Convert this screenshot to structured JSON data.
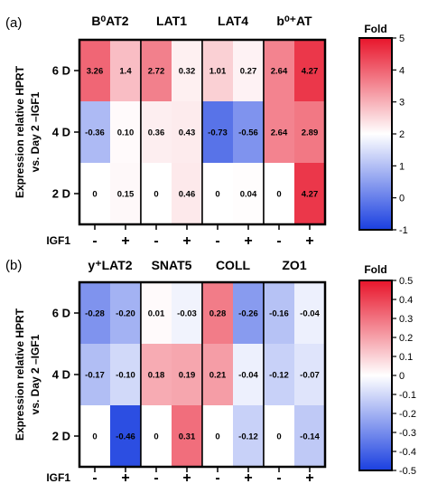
{
  "chart_data": [
    {
      "type": "heatmap",
      "panel_label": "(a)",
      "ylabel_lines": [
        "Expression relative HPRT",
        "vs. Day 2 –IGF1"
      ],
      "row_labels": [
        "6 D",
        "4 D",
        "2 D"
      ],
      "genes": [
        {
          "name": "B⁰AT2",
          "values": [
            [
              3.26,
              1.4
            ],
            [
              -0.36,
              0.1
            ],
            [
              0,
              0.15
            ]
          ],
          "text": [
            [
              "3.26",
              "1.4"
            ],
            [
              "-0.36",
              "0.10"
            ],
            [
              "0",
              "0.15"
            ]
          ]
        },
        {
          "name": "LAT1",
          "values": [
            [
              2.72,
              0.32
            ],
            [
              0.36,
              0.43
            ],
            [
              0,
              0.46
            ]
          ],
          "text": [
            [
              "2.72",
              "0.32"
            ],
            [
              "0.36",
              "0.43"
            ],
            [
              "0",
              "0.46"
            ]
          ]
        },
        {
          "name": "LAT4",
          "values": [
            [
              1.01,
              0.27
            ],
            [
              -0.73,
              -0.56
            ],
            [
              0,
              0.04
            ]
          ],
          "text": [
            [
              "1.01",
              "0.27"
            ],
            [
              "-0.73",
              "-0.56"
            ],
            [
              "0",
              "0.04"
            ]
          ]
        },
        {
          "name": "b⁰⁺AT",
          "values": [
            [
              2.64,
              4.27
            ],
            [
              2.64,
              2.89
            ],
            [
              0,
              4.27
            ]
          ],
          "text": [
            [
              "2.64",
              "4.27"
            ],
            [
              "2.64",
              "2.89"
            ],
            [
              "0",
              "4.27"
            ]
          ]
        }
      ],
      "x_factor_label": "IGF1",
      "x_levels": [
        "-",
        "+"
      ],
      "colorbar": {
        "title": "Fold",
        "min": -1,
        "max": 5,
        "ticks": [
          "-1",
          "0",
          "1",
          "2",
          "3",
          "4",
          "5"
        ],
        "colors": {
          "low": "#1a3fe0",
          "mid": "#ffffff",
          "high": "#e8152b"
        }
      }
    },
    {
      "type": "heatmap",
      "panel_label": "(b)",
      "ylabel_lines": [
        "Expression relative HPRT",
        "vs. Day 2 –IGF1"
      ],
      "row_labels": [
        "6 D",
        "4 D",
        "2 D"
      ],
      "genes": [
        {
          "name": "y⁺LAT2",
          "values": [
            [
              -0.28,
              -0.2
            ],
            [
              -0.17,
              -0.1
            ],
            [
              0,
              -0.46
            ]
          ],
          "text": [
            [
              "-0.28",
              "-0.20"
            ],
            [
              "-0.17",
              "-0.10"
            ],
            [
              "0",
              "-0.46"
            ]
          ]
        },
        {
          "name": "SNAT5",
          "values": [
            [
              0.01,
              -0.03
            ],
            [
              0.18,
              0.19
            ],
            [
              0,
              0.31
            ]
          ],
          "text": [
            [
              "0.01",
              "-0.03"
            ],
            [
              "0.18",
              "0.19"
            ],
            [
              "0",
              "0.31"
            ]
          ]
        },
        {
          "name": "COLL",
          "values": [
            [
              0.28,
              -0.26
            ],
            [
              0.21,
              -0.04
            ],
            [
              0,
              -0.12
            ]
          ],
          "text": [
            [
              "0.28",
              "-0.26"
            ],
            [
              "0.21",
              "-0.04"
            ],
            [
              "0",
              "-0.12"
            ]
          ]
        },
        {
          "name": "ZO1",
          "values": [
            [
              -0.16,
              -0.04
            ],
            [
              -0.12,
              -0.07
            ],
            [
              0,
              -0.14
            ]
          ],
          "text": [
            [
              "-0.16",
              "-0.04"
            ],
            [
              "-0.12",
              "-0.07"
            ],
            [
              "0",
              "-0.14"
            ]
          ]
        }
      ],
      "x_factor_label": "IGF1",
      "x_levels": [
        "-",
        "+"
      ],
      "colorbar": {
        "title": "Fold",
        "min": -0.5,
        "max": 0.5,
        "ticks": [
          "-0.5",
          "-0.4",
          "-0.3",
          "-0.2",
          "-0.1",
          "0",
          "0.1",
          "0.2",
          "0.3",
          "0.4",
          "0.5"
        ],
        "colors": {
          "low": "#1a3fe0",
          "mid": "#ffffff",
          "high": "#e8152b"
        }
      }
    }
  ]
}
